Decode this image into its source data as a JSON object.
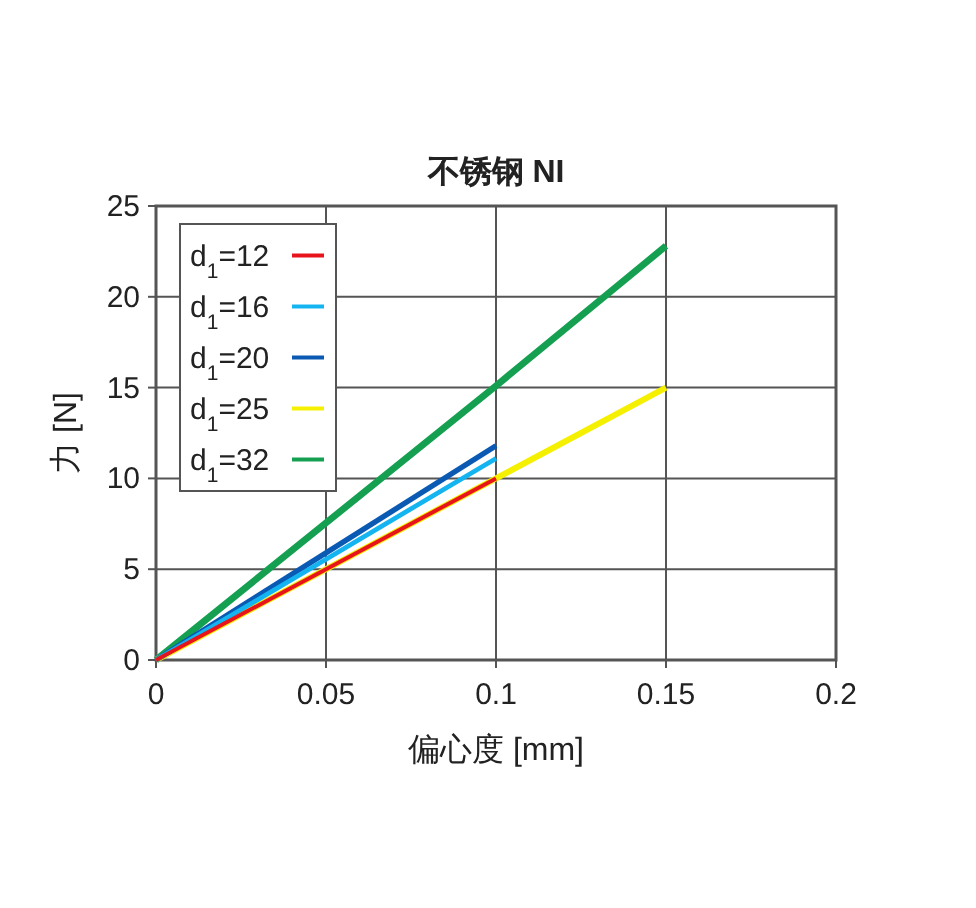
{
  "chart_data": {
    "type": "line",
    "title": "不锈钢 NI",
    "xlabel": "偏心度 [mm]",
    "ylabel": "力 [N]",
    "x": [
      0,
      0.1
    ],
    "series": [
      {
        "name": "d$_{1}$=12",
        "color": "#e8141c",
        "values": [
          0,
          10
        ]
      },
      {
        "name": "d$_{1}$=16",
        "color": "#14b4f0",
        "values": [
          0,
          11.1
        ]
      },
      {
        "name": "d$_{1}$=20",
        "color": "#0a5ab4",
        "values": [
          0,
          11.8
        ]
      },
      {
        "name": "d$_{1}$=25",
        "color": "#f5f000",
        "x": [
          0,
          0.1,
          0.15
        ],
        "values": [
          0,
          10,
          15
        ]
      },
      {
        "name": "d$_{1}$=32",
        "color": "#14a050",
        "x": [
          0,
          0.1,
          0.15
        ],
        "values": [
          0,
          15.1,
          22.8
        ]
      }
    ],
    "xlim": [
      0,
      0.2
    ],
    "xticks": [
      0,
      0.05,
      0.1,
      0.15,
      0.2
    ],
    "ylim": [
      0,
      25
    ],
    "yticks": [
      0,
      5,
      10,
      15,
      20,
      25
    ],
    "grid": true,
    "legend": "top left"
  }
}
